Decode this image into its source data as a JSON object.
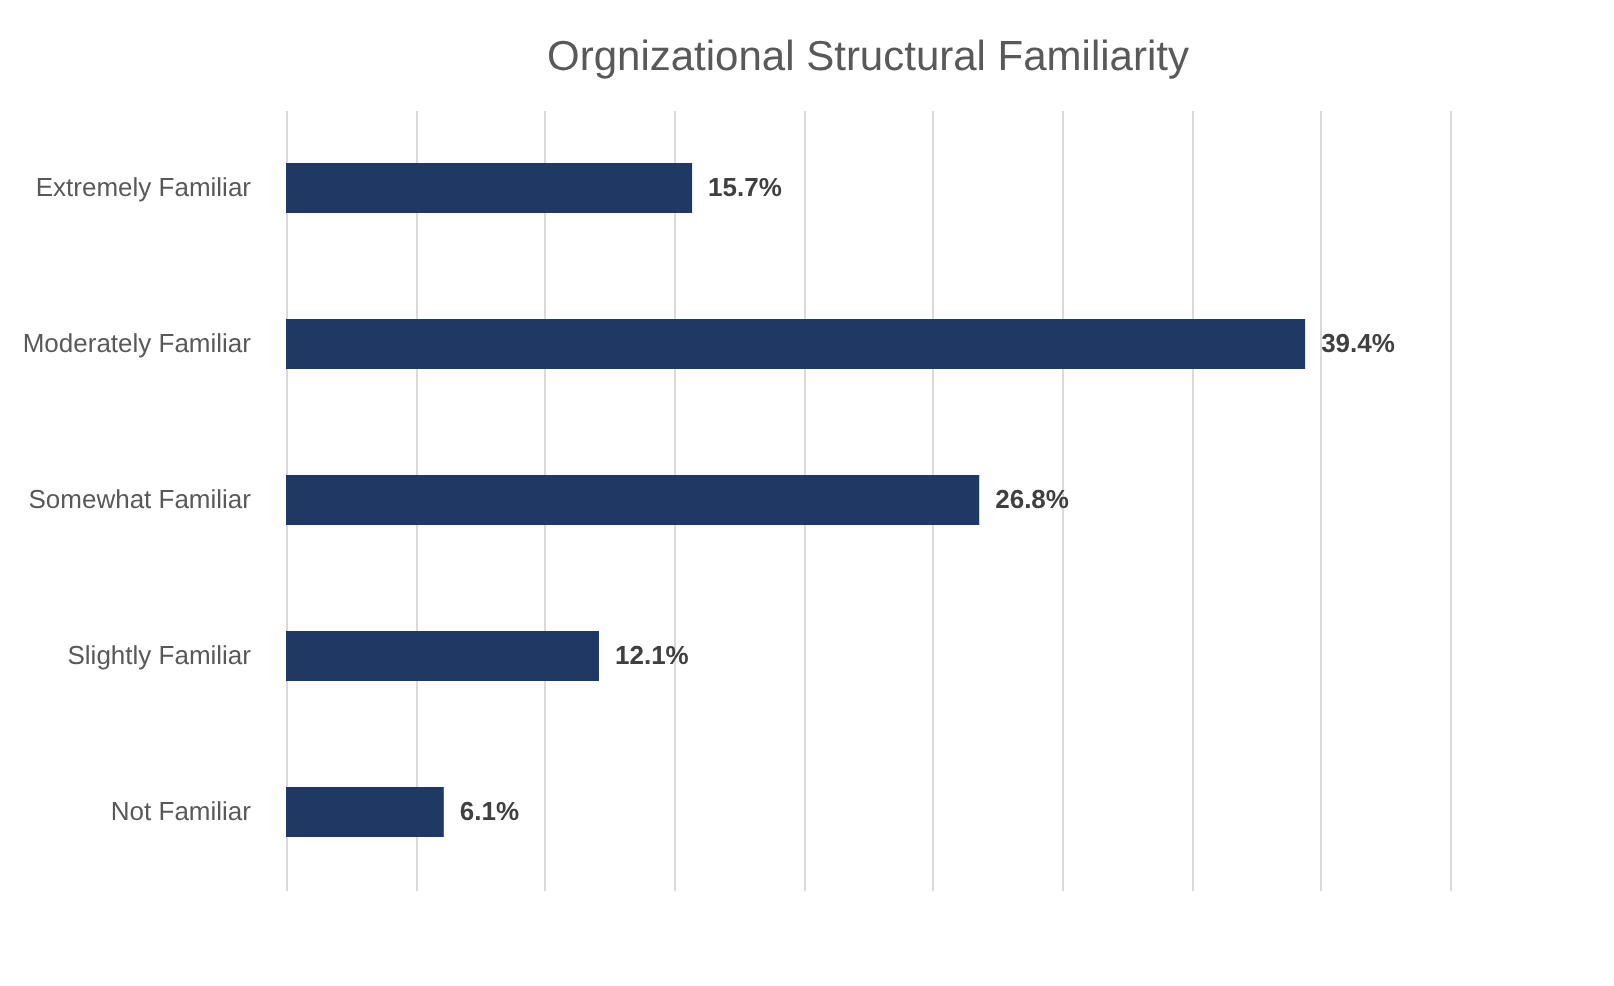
{
  "chart_data": {
    "type": "bar",
    "orientation": "horizontal",
    "title": "Orgnizational Structural Familiarity",
    "categories": [
      "Extremely Familiar",
      "Moderately Familiar",
      "Somewhat Familiar",
      "Slightly Familiar",
      "Not Familiar"
    ],
    "values": [
      15.7,
      39.4,
      26.8,
      12.1,
      6.1
    ],
    "value_labels": [
      "15.7%",
      "39.4%",
      "26.8%",
      "12.1%",
      "6.1%"
    ],
    "color": "#203864",
    "xlim": [
      0,
      45
    ],
    "xticks": [
      {
        "value": 0,
        "label": null
      },
      {
        "value": 5,
        "label": null
      },
      {
        "value": 10,
        "label": null
      },
      {
        "value": 15,
        "label": null
      },
      {
        "value": 20,
        "label": null
      },
      {
        "value": 25,
        "label": null
      },
      {
        "value": 30,
        "label": null
      },
      {
        "value": 35,
        "label": null
      },
      {
        "value": 40,
        "label": null
      },
      {
        "value": 45,
        "label": null
      }
    ],
    "grid": "x",
    "tick_labels": "y"
  }
}
